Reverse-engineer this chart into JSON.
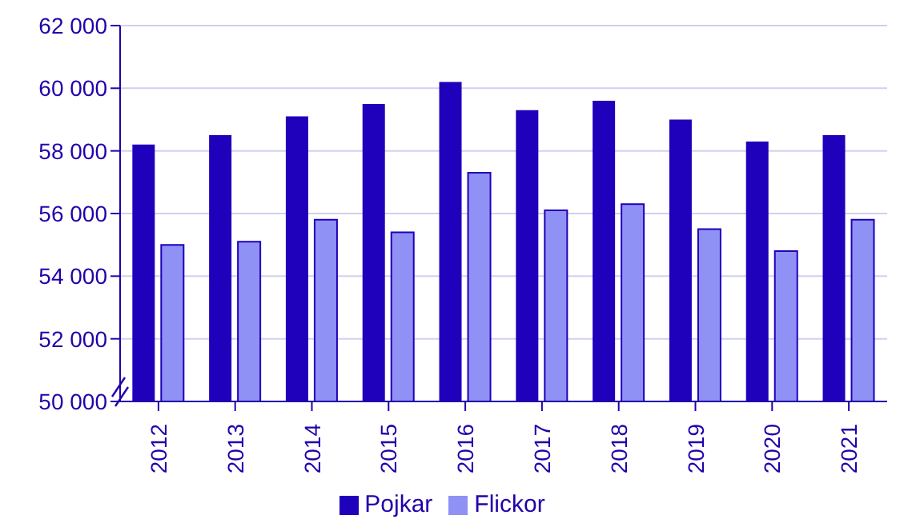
{
  "chart_data": {
    "type": "bar",
    "categories": [
      "2012",
      "2013",
      "2014",
      "2015",
      "2016",
      "2017",
      "2018",
      "2019",
      "2020",
      "2021"
    ],
    "series": [
      {
        "name": "Pojkar",
        "color": "#1f00bb",
        "values": [
          58200,
          58500,
          59100,
          59500,
          60200,
          59300,
          59600,
          59000,
          58300,
          58500
        ]
      },
      {
        "name": "Flickor",
        "color": "#8f91f5",
        "values": [
          55000,
          55100,
          55800,
          55400,
          57300,
          56100,
          56300,
          55500,
          54800,
          55800
        ]
      }
    ],
    "ylim": [
      50000,
      62000
    ],
    "yticks": [
      {
        "value": 50000,
        "label": "50 000"
      },
      {
        "value": 52000,
        "label": "52 000"
      },
      {
        "value": 54000,
        "label": "54 000"
      },
      {
        "value": 56000,
        "label": "56 000"
      },
      {
        "value": 58000,
        "label": "58 000"
      },
      {
        "value": 60000,
        "label": "60 000"
      },
      {
        "value": 62000,
        "label": "62 000"
      }
    ],
    "grid": "y",
    "legend": "bottom"
  }
}
